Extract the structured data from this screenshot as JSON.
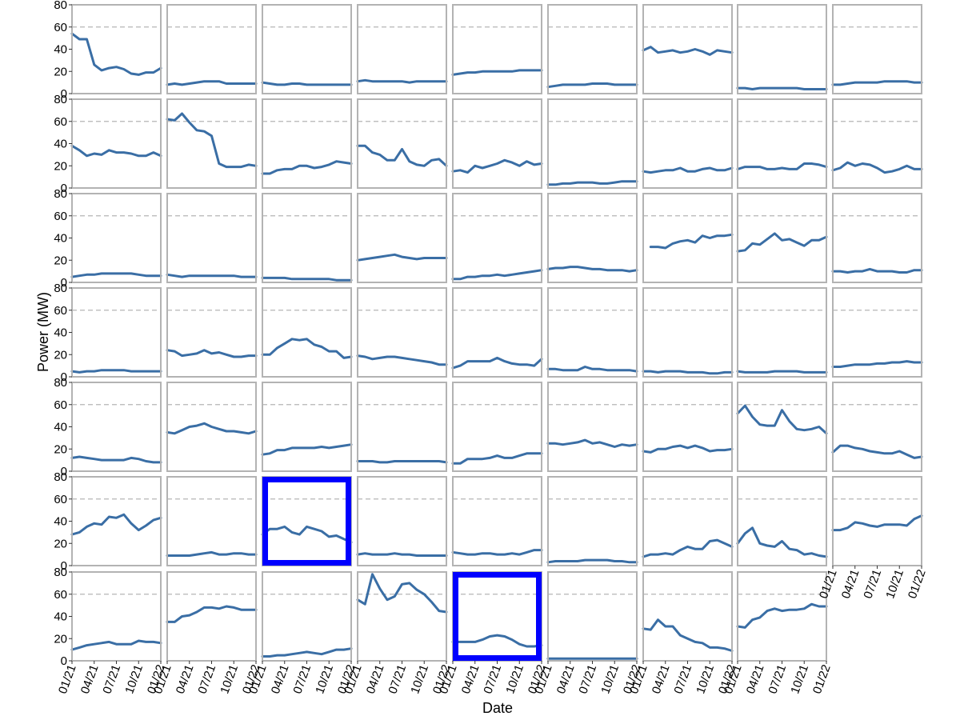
{
  "chart_data": {
    "type": "line",
    "layout": "small multiples, 7 rows x 9 columns (62 panels)",
    "xlabel": "Date",
    "ylabel": "Power (MW)",
    "ylim": [
      0,
      80
    ],
    "y_ticks": [
      "0",
      "20",
      "40",
      "60",
      "80"
    ],
    "x_ticks": [
      "01/21",
      "04/21",
      "07/21",
      "10/21",
      "01/22"
    ],
    "x_tick_months": [
      0,
      3,
      6,
      9,
      12
    ],
    "x_domain_months": [
      0,
      12
    ],
    "x_values_months": [
      0,
      1,
      2,
      3,
      4,
      5,
      6,
      7,
      8,
      9,
      10,
      11,
      12
    ],
    "reference_line": {
      "y": 60,
      "style": "dashed"
    },
    "colors": {
      "line": "#3a6ea5",
      "reference": "#b5b5b5",
      "frame": "#b3b3b3",
      "highlight": "#0000ff"
    },
    "highlighted_panels": [
      {
        "row": 5,
        "col": 2
      },
      {
        "row": 6,
        "col": 4
      }
    ],
    "panels": [
      [
        [
          54,
          49,
          49,
          26,
          21,
          23,
          24,
          22,
          18,
          17,
          19,
          19,
          23
        ],
        [
          8,
          9,
          8,
          9,
          10,
          11,
          11,
          11,
          9,
          9,
          9,
          9,
          9
        ],
        [
          10,
          9,
          8,
          8,
          9,
          9,
          8,
          8,
          8,
          8,
          8,
          8,
          8
        ],
        [
          11,
          12,
          11,
          11,
          11,
          11,
          11,
          10,
          11,
          11,
          11,
          11,
          11
        ],
        [
          17,
          18,
          19,
          19,
          20,
          20,
          20,
          20,
          20,
          21,
          21,
          21,
          21
        ],
        [
          6,
          7,
          8,
          8,
          8,
          8,
          9,
          9,
          9,
          8,
          8,
          8,
          8
        ],
        [
          39,
          42,
          37,
          38,
          39,
          37,
          38,
          40,
          38,
          35,
          39,
          38,
          37
        ],
        [
          5,
          5,
          4,
          5,
          5,
          5,
          5,
          5,
          5,
          4,
          4,
          4,
          4
        ],
        [
          8,
          8,
          9,
          10,
          10,
          10,
          10,
          11,
          11,
          11,
          11,
          10,
          10
        ]
      ],
      [
        [
          38,
          34,
          29,
          31,
          30,
          34,
          32,
          32,
          31,
          29,
          29,
          32,
          29
        ],
        [
          62,
          61,
          67,
          59,
          52,
          51,
          47,
          22,
          19,
          19,
          19,
          21,
          20
        ],
        [
          13,
          13,
          16,
          17,
          17,
          20,
          20,
          18,
          19,
          21,
          24,
          23,
          22
        ],
        [
          38,
          38,
          32,
          30,
          25,
          25,
          35,
          24,
          21,
          20,
          25,
          26,
          20
        ],
        [
          15,
          16,
          14,
          20,
          18,
          20,
          22,
          25,
          23,
          20,
          24,
          21,
          22
        ],
        [
          3,
          3,
          4,
          4,
          5,
          5,
          5,
          4,
          4,
          5,
          6,
          6,
          6
        ],
        [
          15,
          14,
          15,
          16,
          16,
          18,
          15,
          15,
          17,
          18,
          16,
          16,
          18
        ],
        [
          17,
          19,
          19,
          19,
          17,
          17,
          18,
          17,
          17,
          22,
          22,
          21,
          19
        ],
        [
          16,
          18,
          23,
          20,
          22,
          21,
          18,
          14,
          15,
          17,
          20,
          17,
          17
        ]
      ],
      [
        [
          5,
          6,
          7,
          7,
          8,
          8,
          8,
          8,
          8,
          7,
          6,
          6,
          6
        ],
        [
          7,
          6,
          5,
          6,
          6,
          6,
          6,
          6,
          6,
          6,
          5,
          5,
          5
        ],
        [
          4,
          4,
          4,
          4,
          3,
          3,
          3,
          3,
          3,
          3,
          2,
          2,
          2
        ],
        [
          20,
          21,
          22,
          23,
          24,
          25,
          23,
          22,
          21,
          22,
          22,
          22,
          22
        ],
        [
          3,
          3,
          5,
          5,
          6,
          6,
          7,
          6,
          7,
          8,
          9,
          10,
          11
        ],
        [
          12,
          13,
          13,
          14,
          14,
          13,
          12,
          12,
          11,
          11,
          11,
          10,
          11
        ],
        [
          null,
          32,
          32,
          31,
          35,
          37,
          38,
          36,
          42,
          40,
          42,
          42,
          43
        ],
        [
          28,
          29,
          35,
          34,
          39,
          44,
          38,
          39,
          36,
          33,
          38,
          38,
          41
        ],
        [
          10,
          10,
          9,
          10,
          10,
          12,
          10,
          10,
          10,
          9,
          9,
          11,
          11
        ]
      ],
      [
        [
          5,
          4,
          5,
          5,
          6,
          6,
          6,
          6,
          5,
          5,
          5,
          5,
          5
        ],
        [
          24,
          23,
          19,
          20,
          21,
          24,
          21,
          22,
          20,
          18,
          18,
          19,
          19
        ],
        [
          20,
          20,
          26,
          30,
          34,
          33,
          34,
          29,
          27,
          23,
          23,
          17,
          18
        ],
        [
          19,
          18,
          16,
          17,
          18,
          18,
          17,
          16,
          15,
          14,
          13,
          11,
          11
        ],
        [
          8,
          10,
          14,
          14,
          14,
          14,
          17,
          14,
          12,
          11,
          11,
          10,
          16
        ],
        [
          7,
          7,
          6,
          6,
          6,
          9,
          7,
          7,
          6,
          6,
          6,
          6,
          5
        ],
        [
          5,
          5,
          4,
          5,
          5,
          5,
          4,
          4,
          4,
          3,
          3,
          4,
          4
        ],
        [
          5,
          4,
          4,
          4,
          4,
          5,
          5,
          5,
          5,
          4,
          4,
          4,
          4
        ],
        [
          9,
          9,
          10,
          11,
          11,
          11,
          12,
          12,
          13,
          13,
          14,
          13,
          13
        ]
      ],
      [
        [
          12,
          13,
          12,
          11,
          10,
          10,
          10,
          10,
          12,
          11,
          9,
          8,
          8
        ],
        [
          35,
          34,
          37,
          40,
          41,
          43,
          40,
          38,
          36,
          36,
          35,
          34,
          36
        ],
        [
          15,
          16,
          19,
          19,
          21,
          21,
          21,
          21,
          22,
          21,
          22,
          23,
          24
        ],
        [
          9,
          9,
          9,
          8,
          8,
          9,
          9,
          9,
          9,
          9,
          9,
          9,
          8
        ],
        [
          7,
          7,
          11,
          11,
          11,
          12,
          14,
          12,
          12,
          14,
          16,
          16,
          16
        ],
        [
          25,
          25,
          24,
          25,
          26,
          28,
          25,
          26,
          24,
          22,
          24,
          23,
          24
        ],
        [
          18,
          17,
          20,
          20,
          22,
          23,
          21,
          23,
          21,
          18,
          19,
          19,
          20
        ],
        [
          52,
          59,
          49,
          42,
          41,
          41,
          55,
          45,
          38,
          37,
          38,
          40,
          34
        ],
        [
          17,
          23,
          23,
          21,
          20,
          18,
          17,
          16,
          16,
          18,
          15,
          12,
          13
        ]
      ],
      [
        [
          28,
          30,
          35,
          38,
          37,
          44,
          43,
          46,
          38,
          32,
          36,
          41,
          43
        ],
        [
          9,
          9,
          9,
          9,
          10,
          11,
          12,
          10,
          10,
          11,
          11,
          10,
          10
        ],
        [
          28,
          33,
          33,
          35,
          30,
          28,
          35,
          33,
          31,
          26,
          27,
          24,
          21
        ],
        [
          10,
          11,
          10,
          10,
          10,
          11,
          10,
          10,
          9,
          9,
          9,
          9,
          9
        ],
        [
          12,
          11,
          10,
          10,
          11,
          11,
          10,
          10,
          11,
          10,
          12,
          14,
          14
        ],
        [
          3,
          4,
          4,
          4,
          4,
          5,
          5,
          5,
          5,
          4,
          4,
          3,
          3
        ],
        [
          8,
          10,
          10,
          11,
          10,
          14,
          17,
          15,
          15,
          22,
          23,
          20,
          17
        ],
        [
          20,
          29,
          34,
          20,
          18,
          17,
          22,
          15,
          14,
          10,
          11,
          9,
          8
        ],
        [
          32,
          32,
          34,
          39,
          38,
          36,
          35,
          37,
          37,
          37,
          36,
          42,
          45
        ]
      ],
      [
        [
          10,
          12,
          14,
          15,
          16,
          17,
          15,
          15,
          15,
          18,
          17,
          17,
          16
        ],
        [
          35,
          35,
          40,
          41,
          44,
          48,
          48,
          47,
          49,
          48,
          46,
          46,
          46
        ],
        [
          4,
          4,
          5,
          5,
          6,
          7,
          8,
          7,
          6,
          8,
          10,
          10,
          11
        ],
        [
          55,
          51,
          78,
          65,
          55,
          58,
          69,
          70,
          64,
          60,
          53,
          45,
          44
        ],
        [
          17,
          17,
          17,
          17,
          19,
          22,
          23,
          22,
          19,
          15,
          13,
          13,
          14
        ],
        [
          2,
          2,
          2,
          2,
          2,
          2,
          2,
          2,
          2,
          2,
          2,
          2,
          2
        ],
        [
          29,
          28,
          37,
          31,
          31,
          23,
          20,
          17,
          16,
          12,
          12,
          11,
          9
        ],
        [
          31,
          30,
          37,
          39,
          45,
          47,
          45,
          46,
          46,
          47,
          51,
          49,
          49
        ]
      ]
    ]
  }
}
